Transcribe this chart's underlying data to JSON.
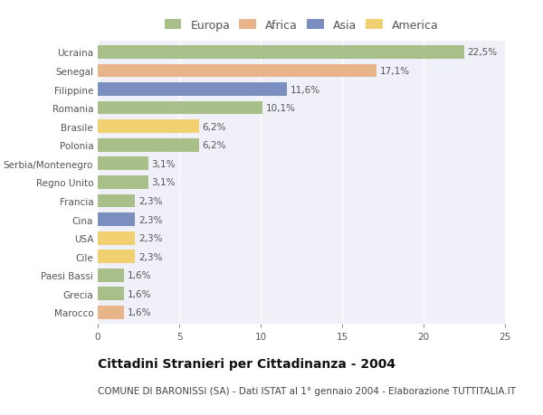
{
  "categories": [
    "Marocco",
    "Grecia",
    "Paesi Bassi",
    "Cile",
    "USA",
    "Cina",
    "Francia",
    "Regno Unito",
    "Serbia/Montenegro",
    "Polonia",
    "Brasile",
    "Romania",
    "Filippine",
    "Senegal",
    "Ucraina"
  ],
  "values": [
    1.6,
    1.6,
    1.6,
    2.3,
    2.3,
    2.3,
    2.3,
    3.1,
    3.1,
    6.2,
    6.2,
    10.1,
    11.6,
    17.1,
    22.5
  ],
  "labels": [
    "1,6%",
    "1,6%",
    "1,6%",
    "2,3%",
    "2,3%",
    "2,3%",
    "2,3%",
    "3,1%",
    "3,1%",
    "6,2%",
    "6,2%",
    "10,1%",
    "11,6%",
    "17,1%",
    "22,5%"
  ],
  "colors": [
    "#e8b48a",
    "#a8bf8a",
    "#a8bf8a",
    "#f0d070",
    "#f0d070",
    "#7a8fbf",
    "#a8bf8a",
    "#a8bf8a",
    "#a8bf8a",
    "#a8bf8a",
    "#f0d070",
    "#a8bf8a",
    "#7a8fbf",
    "#e8b48a",
    "#a8bf8a"
  ],
  "legend": [
    {
      "label": "Europa",
      "color": "#a8bf8a"
    },
    {
      "label": "Africa",
      "color": "#e8b48a"
    },
    {
      "label": "Asia",
      "color": "#7a8fbf"
    },
    {
      "label": "America",
      "color": "#f0d070"
    }
  ],
  "xlim": [
    0,
    25
  ],
  "xticks": [
    0,
    5,
    10,
    15,
    20,
    25
  ],
  "title": "Cittadini Stranieri per Cittadinanza - 2004",
  "subtitle": "COMUNE DI BARONISSI (SA) - Dati ISTAT al 1° gennaio 2004 - Elaborazione TUTTITALIA.IT",
  "plot_bg_color": "#f0f0f8",
  "fig_bg_color": "#ffffff",
  "bar_height": 0.72,
  "value_fontsize": 7.5,
  "label_fontsize": 7.5,
  "title_fontsize": 10,
  "subtitle_fontsize": 7.5,
  "grid_color": "#ffffff",
  "text_color": "#555555"
}
